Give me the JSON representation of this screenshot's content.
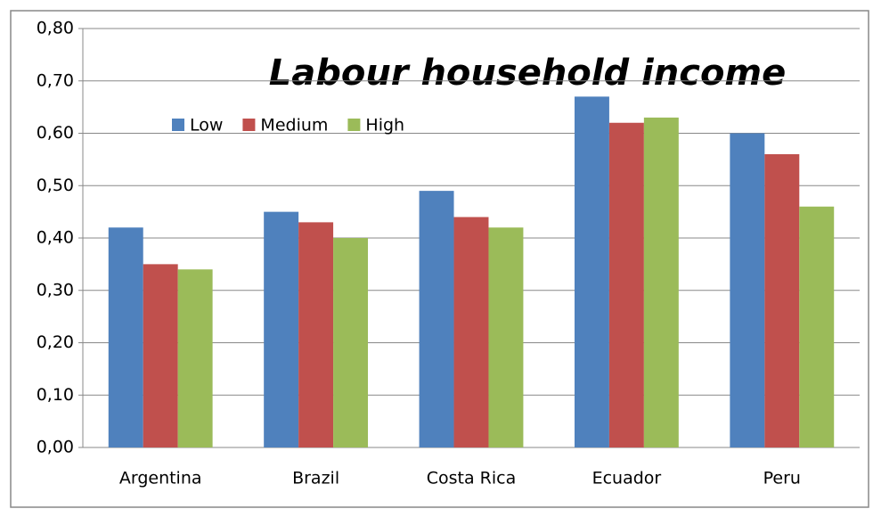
{
  "chart_data": {
    "type": "bar",
    "title": "Labour household income",
    "categories": [
      "Argentina",
      "Brazil",
      "Costa Rica",
      "Ecuador",
      "Peru"
    ],
    "series": [
      {
        "name": "Low",
        "color": "#4f81bd",
        "values": [
          0.42,
          0.45,
          0.49,
          0.67,
          0.6
        ]
      },
      {
        "name": "Medium",
        "color": "#c0504d",
        "values": [
          0.35,
          0.43,
          0.44,
          0.62,
          0.56
        ]
      },
      {
        "name": "High",
        "color": "#9bbb59",
        "values": [
          0.34,
          0.4,
          0.42,
          0.63,
          0.46
        ]
      }
    ],
    "ylim": [
      0,
      0.8
    ],
    "yticks": [
      {
        "value": 0,
        "label": "0,00"
      },
      {
        "value": 0.1,
        "label": "0,10"
      },
      {
        "value": 0.2,
        "label": "0,20"
      },
      {
        "value": 0.3,
        "label": "0,30"
      },
      {
        "value": 0.4,
        "label": "0,40"
      },
      {
        "value": 0.5,
        "label": "0,50"
      },
      {
        "value": 0.6,
        "label": "0,60"
      },
      {
        "value": 0.7,
        "label": "0,70"
      },
      {
        "value": 0.8,
        "label": "0,80"
      }
    ],
    "grid": true,
    "legend": "upper left"
  }
}
